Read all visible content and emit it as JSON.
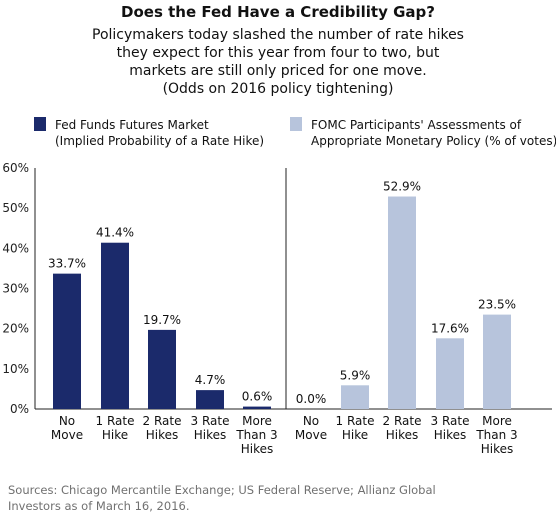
{
  "title": "Does the Fed Have a Credibility Gap?",
  "subtitle_lines": [
    "Policymakers today slashed the number of rate hikes",
    "they expect for this year from four to two, but",
    "markets are still only priced for one move.",
    "(Odds on 2016 policy tightening)"
  ],
  "legend": [
    {
      "lines": [
        "Fed Funds Futures Market",
        "(Implied Probability of a Rate Hike)"
      ],
      "color": "#1b2a6b"
    },
    {
      "lines": [
        "FOMC Participants' Assessments of",
        "Appropriate Monetary Policy (% of votes)"
      ],
      "color": "#b7c4dc"
    }
  ],
  "chart_data": {
    "type": "bar",
    "ylim": [
      0,
      60
    ],
    "yticks": [
      "0%",
      "10%",
      "20%",
      "30%",
      "40%",
      "50%",
      "60%"
    ],
    "grid": false,
    "panels": [
      {
        "series_name": "Fed Funds Futures Market",
        "color": "#1b2a6b",
        "categories": [
          [
            "No",
            "Move"
          ],
          [
            "1 Rate",
            "Hike"
          ],
          [
            "2 Rate",
            "Hikes"
          ],
          [
            "3 Rate",
            "Hikes"
          ],
          [
            "More",
            "Than 3",
            "Hikes"
          ]
        ],
        "values": [
          33.7,
          41.4,
          19.7,
          4.7,
          0.6
        ],
        "labels": [
          "33.7%",
          "41.4%",
          "19.7%",
          "4.7%",
          "0.6%"
        ]
      },
      {
        "series_name": "FOMC Participants' Assessments of Appropriate Monetary Policy",
        "color": "#b7c4dc",
        "categories": [
          [
            "No",
            "Move"
          ],
          [
            "1 Rate",
            "Hike"
          ],
          [
            "2 Rate",
            "Hikes"
          ],
          [
            "3 Rate",
            "Hikes"
          ],
          [
            "More",
            "Than 3",
            "Hikes"
          ]
        ],
        "values": [
          0.0,
          5.9,
          52.9,
          17.6,
          23.5
        ],
        "labels": [
          "0.0%",
          "5.9%",
          "52.9%",
          "17.6%",
          "23.5%"
        ]
      }
    ]
  },
  "sources_lines": [
    "Sources: Chicago Mercantile Exchange; US Federal Reserve; Allianz Global",
    "Investors as of March 16, 2016."
  ]
}
